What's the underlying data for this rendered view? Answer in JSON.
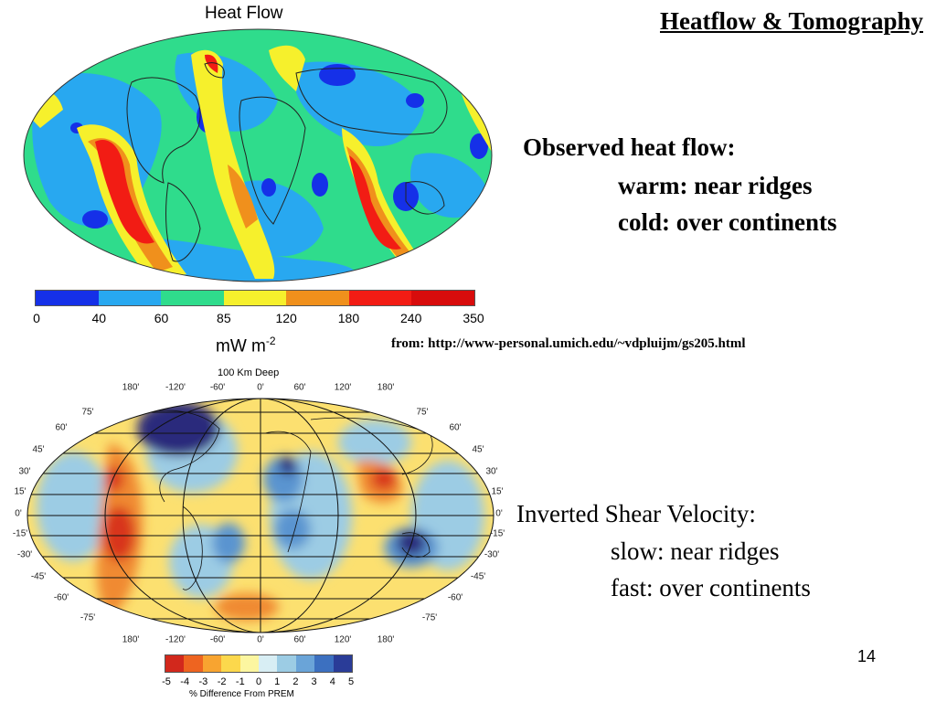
{
  "slide": {
    "title": "Heatflow & Tomography",
    "page_number": "14",
    "source": "from: http://www-personal.umich.edu/~vdpluijm/gs205.html"
  },
  "heatflow_text": {
    "head": "Observed heat flow:",
    "warm": "warm: near ridges",
    "cold": "cold: over continents"
  },
  "shear_text": {
    "head": "Inverted Shear Velocity:",
    "slow": "slow: near ridges",
    "fast": "fast: over continents"
  },
  "heat_map": {
    "title": "Heat Flow",
    "unit_text": "mW m",
    "unit_exp": "-2",
    "colorbar_colors": [
      "#1530e8",
      "#28a8f0",
      "#2fdc8c",
      "#f6f02c",
      "#f0901c",
      "#f21c14",
      "#d80c0c"
    ],
    "colorbar_ticks": [
      "0",
      "40",
      "60",
      "85",
      "120",
      "180",
      "240",
      "350"
    ]
  },
  "tomo_map": {
    "title": "100 Km Deep",
    "lon_labels": [
      "180'",
      "-120'",
      "-60'",
      "0'",
      "60'",
      "120'",
      "180'"
    ],
    "lat_labels_left": [
      "75'",
      "60'",
      "45'",
      "30'",
      "15'",
      "0'",
      "-15'",
      "-30'",
      "-45'",
      "-60'",
      "-75'"
    ],
    "lat_labels_right": [
      "75'",
      "60'",
      "45'",
      "30'",
      "15'",
      "0'",
      "-15'",
      "-30'",
      "-45'",
      "-60'",
      "-75'"
    ],
    "colorbar_colors": [
      "#d2281c",
      "#ee6420",
      "#f8a430",
      "#fcd84c",
      "#fcf6a0",
      "#d8eef4",
      "#9ccce4",
      "#6aa4d8",
      "#3c70c0",
      "#2a3c98"
    ],
    "colorbar_ticks": [
      "-5",
      "-4",
      "-3",
      "-2",
      "-1",
      "0",
      "1",
      "2",
      "3",
      "4",
      "5"
    ],
    "unit_text": "% Difference From PREM"
  }
}
